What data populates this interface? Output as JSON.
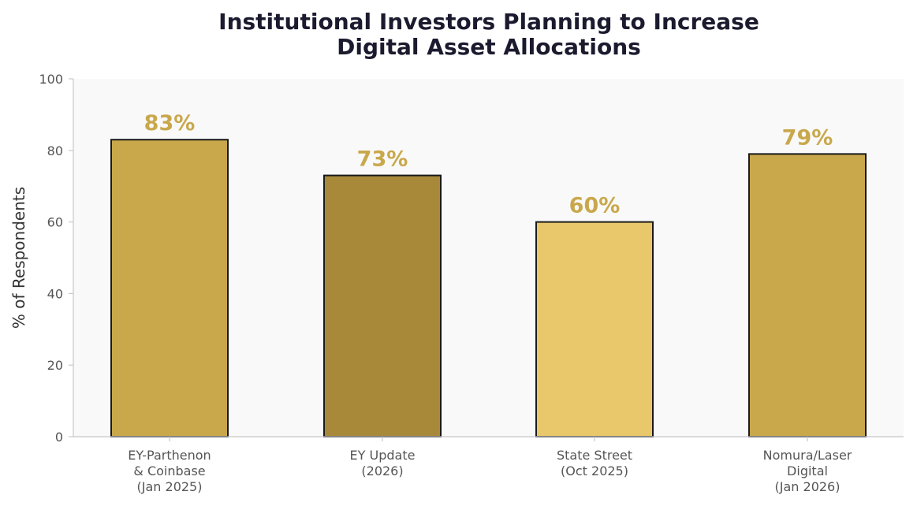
{
  "chart_data": {
    "type": "bar",
    "title": [
      "Institutional Investors Planning to Increase",
      "Digital Asset Allocations"
    ],
    "ylabel": "% of Respondents",
    "xlabel": "",
    "ylim": [
      0,
      100
    ],
    "yticks": [
      "0",
      "20",
      "40",
      "60",
      "80",
      "100"
    ],
    "grid": false,
    "categories": [
      [
        "EY-Parthenon",
        "& Coinbase",
        "(Jan 2025)"
      ],
      [
        "EY Update",
        "(2026)"
      ],
      [
        "State Street",
        "(Oct 2025)"
      ],
      [
        "Nomura/Laser",
        "Digital",
        "(Jan 2026)"
      ]
    ],
    "values": [
      83,
      73,
      60,
      79
    ],
    "data_labels": [
      "83%",
      "73%",
      "60%",
      "79%"
    ],
    "bar_colors": [
      "#c9a84c",
      "#a88939",
      "#e8c86a",
      "#c9a84c"
    ],
    "label_color": "#c9a84c",
    "plot_background": "#f9f9f9",
    "bar_edge_color": "#1a1a1a"
  }
}
